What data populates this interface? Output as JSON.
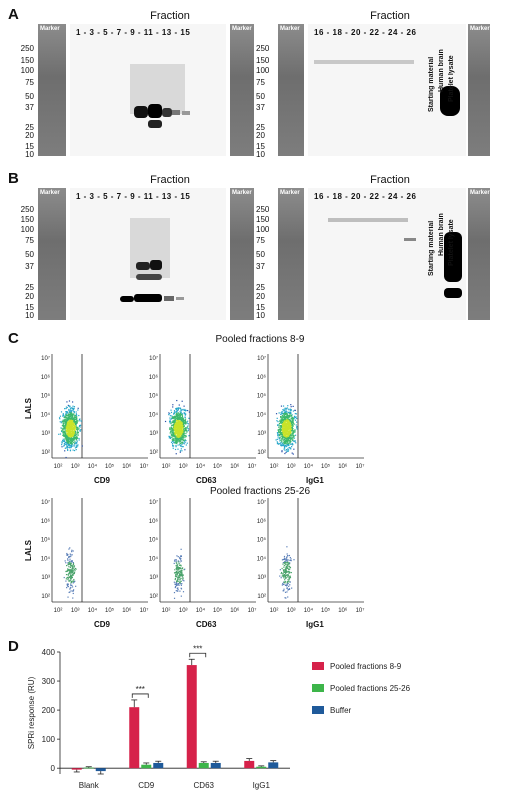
{
  "panels": {
    "a": "A",
    "b": "B",
    "c": "C",
    "d": "D"
  },
  "blots": {
    "fraction_label": "Fraction",
    "marker_label": "Marker",
    "lanes_left": "1 - 3 - 5 - 7 - 9 - 11 - 13 - 15",
    "lanes_right": "16 - 18 - 20 - 22 - 24 - 26",
    "vertical_labels": [
      "Starting material",
      "Human brain",
      "Platelet lysate"
    ],
    "mw_left": [
      "250",
      "150",
      "100",
      "75",
      "50",
      "37",
      "25",
      "20",
      "15",
      "10"
    ],
    "mw_right": [
      "250",
      "150",
      "100",
      "75",
      "50",
      "37",
      "25",
      "20",
      "15",
      "10"
    ]
  },
  "flow": {
    "top_title": "Pooled fractions 8-9",
    "bottom_title": "Pooled fractions 25-26",
    "ylabel": "LALS",
    "markers": [
      "CD9",
      "CD63",
      "IgG1"
    ],
    "ticks": [
      "10²",
      "10³",
      "10⁴",
      "10⁵",
      "10⁶",
      "10⁷"
    ]
  },
  "chart_data": {
    "type": "bar",
    "categories": [
      "Blank",
      "CD9",
      "CD63",
      "IgG1"
    ],
    "series": [
      {
        "name": "Pooled fractions 8-9",
        "color": "#d6224a",
        "values": [
          -5,
          210,
          355,
          25
        ],
        "errors": [
          8,
          25,
          20,
          8
        ]
      },
      {
        "name": "Pooled fractions 25-26",
        "color": "#3db54a",
        "values": [
          2,
          12,
          18,
          5
        ],
        "errors": [
          3,
          6,
          4,
          3
        ]
      },
      {
        "name": "Buffer",
        "color": "#1f5a9a",
        "values": [
          -10,
          18,
          18,
          20
        ],
        "errors": [
          10,
          6,
          6,
          6
        ]
      }
    ],
    "ylabel": "SPRi response (RU)",
    "ylim": [
      -20,
      400
    ],
    "yticks": [
      0,
      100,
      200,
      300,
      400
    ],
    "significance": [
      {
        "category": "CD9",
        "label": "***"
      },
      {
        "category": "CD63",
        "label": "***"
      }
    ],
    "legend": "right"
  }
}
